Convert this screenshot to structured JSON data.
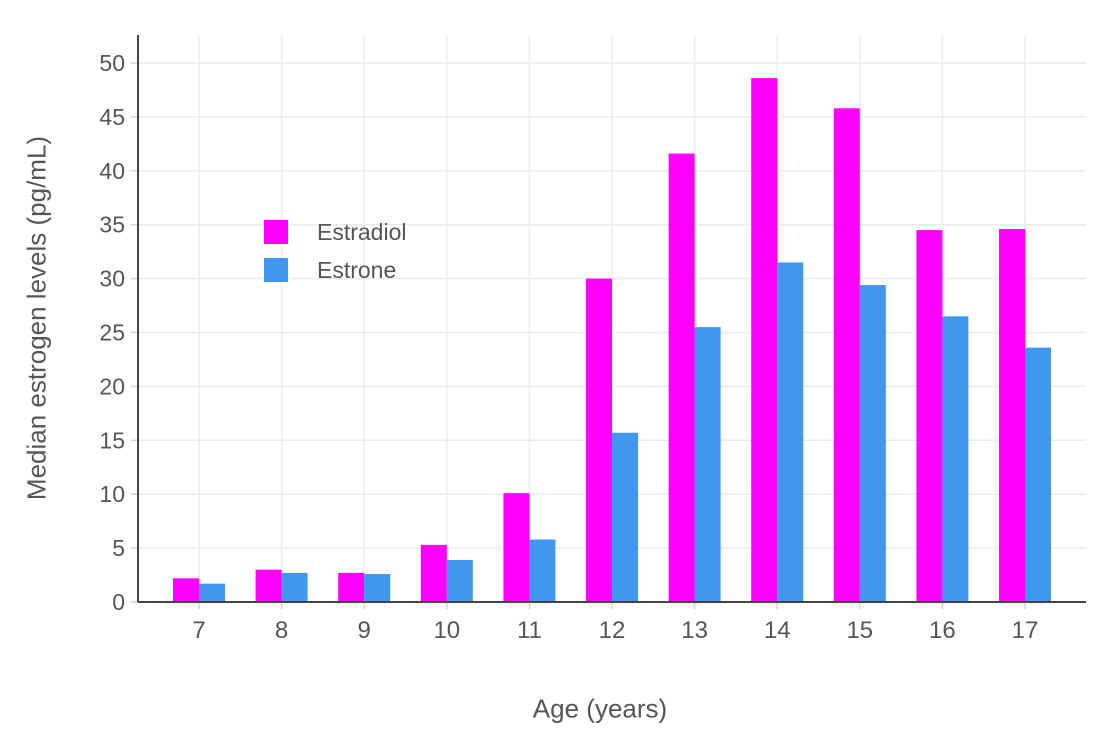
{
  "chart_data": {
    "type": "bar",
    "title": "",
    "xlabel": "Age (years)",
    "ylabel": "Median estrogen levels (pg/mL)",
    "categories": [
      "7",
      "8",
      "9",
      "10",
      "11",
      "12",
      "13",
      "14",
      "15",
      "16",
      "17"
    ],
    "series": [
      {
        "name": "Estradiol",
        "color": "#FF00FF",
        "values": [
          2.2,
          3.0,
          2.7,
          5.3,
          10.1,
          30.0,
          41.6,
          48.6,
          45.8,
          34.5,
          34.6
        ]
      },
      {
        "name": "Estrone",
        "color": "#4196F0",
        "values": [
          1.7,
          2.7,
          2.6,
          3.9,
          5.8,
          15.7,
          25.5,
          31.5,
          29.4,
          26.5,
          23.6
        ]
      }
    ],
    "ylim": [
      0,
      52.6
    ],
    "yticks": [
      0,
      5,
      10,
      15,
      20,
      25,
      30,
      35,
      40,
      45,
      50
    ],
    "grid": true,
    "legend_position": "inside-top-left",
    "colors": {
      "axis": "#444444",
      "grid": "#EBEBEB",
      "tick": "#D4D4D4",
      "text": "#555555",
      "background": "#FFFFFF"
    }
  }
}
